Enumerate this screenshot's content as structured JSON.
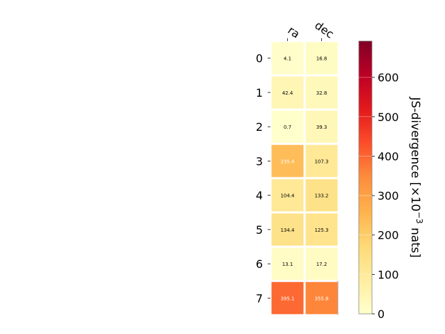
{
  "chart_data": {
    "type": "heatmap",
    "columns": [
      "ra",
      "dec"
    ],
    "rows": [
      "0",
      "1",
      "2",
      "3",
      "4",
      "5",
      "6",
      "7"
    ],
    "values": [
      [
        4.1,
        16.8
      ],
      [
        42.4,
        32.8
      ],
      [
        0.7,
        39.3
      ],
      [
        235.4,
        107.3
      ],
      [
        104.4,
        133.2
      ],
      [
        134.4,
        125.3
      ],
      [
        13.1,
        17.2
      ],
      [
        395.1,
        355.8
      ]
    ],
    "cell_labels": [
      [
        "4.1",
        "16.8"
      ],
      [
        "42.4",
        "32.8"
      ],
      [
        "0.7",
        "39.3"
      ],
      [
        "235.4",
        "107.3"
      ],
      [
        "104.4",
        "133.2"
      ],
      [
        "134.4",
        "125.3"
      ],
      [
        "13.1",
        "17.2"
      ],
      [
        "395.1",
        "355.8"
      ]
    ],
    "colorbar": {
      "label_main": "JS-divergence [×10",
      "label_exp": "−3",
      "label_end": " nats]",
      "min": 0,
      "max": 692,
      "ticks": [
        0,
        100,
        200,
        300,
        400,
        500,
        600
      ],
      "tick_labels": [
        "0",
        "100",
        "200",
        "300",
        "400",
        "500",
        "600"
      ],
      "colormap": "YlOrRd"
    },
    "grid": false,
    "colors": {
      "cell_border": "#ffffff",
      "label_dark": "#000000",
      "label_light": "#ffffff"
    }
  }
}
